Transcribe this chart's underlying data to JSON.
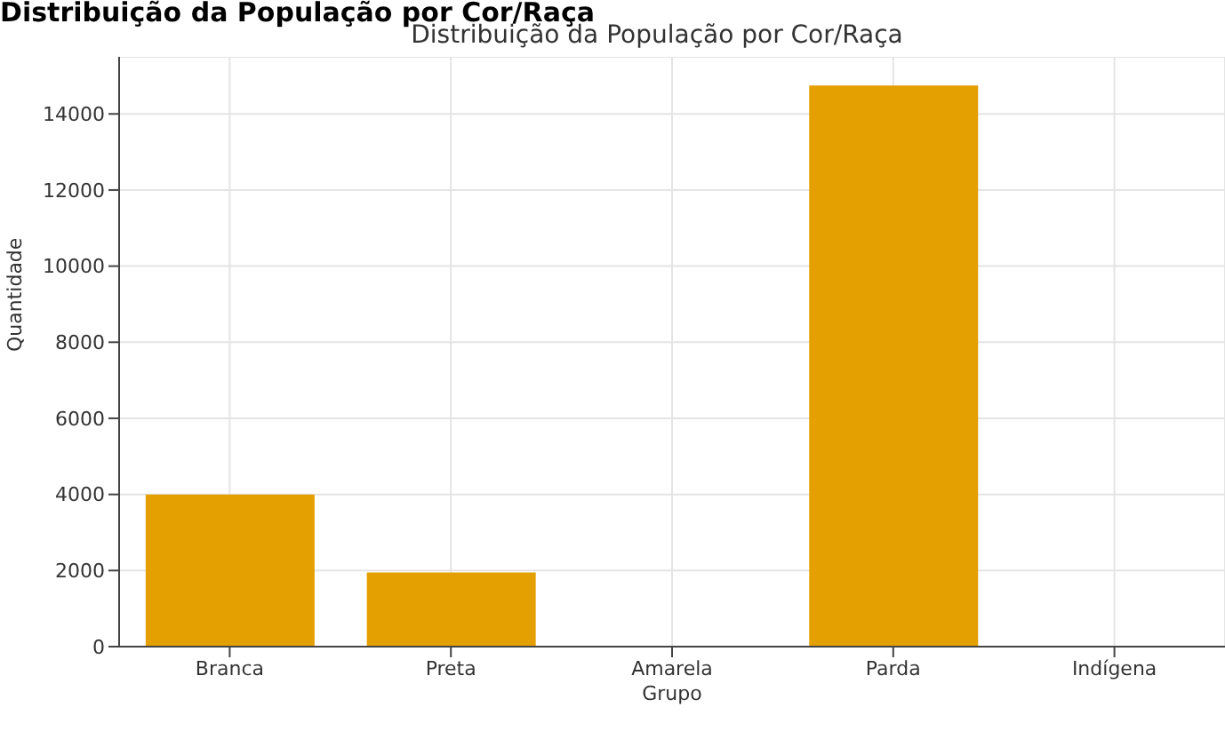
{
  "chart_data": {
    "type": "bar",
    "title": "Distribuição da População por Cor/Raça",
    "annotations": [
      "Distribuição da População por Cor/Raça"
    ],
    "xlabel": "Grupo",
    "ylabel": "Quantidade",
    "categories": [
      "Branca",
      "Preta",
      "Amarela",
      "Parda",
      "Indígena"
    ],
    "values": [
      4000,
      1950,
      0,
      14750,
      0
    ],
    "color": "#e49f00",
    "ylim": [
      0,
      15500
    ],
    "yticks": [
      0,
      2000,
      4000,
      6000,
      8000,
      10000,
      12000,
      14000
    ],
    "grid": true
  }
}
